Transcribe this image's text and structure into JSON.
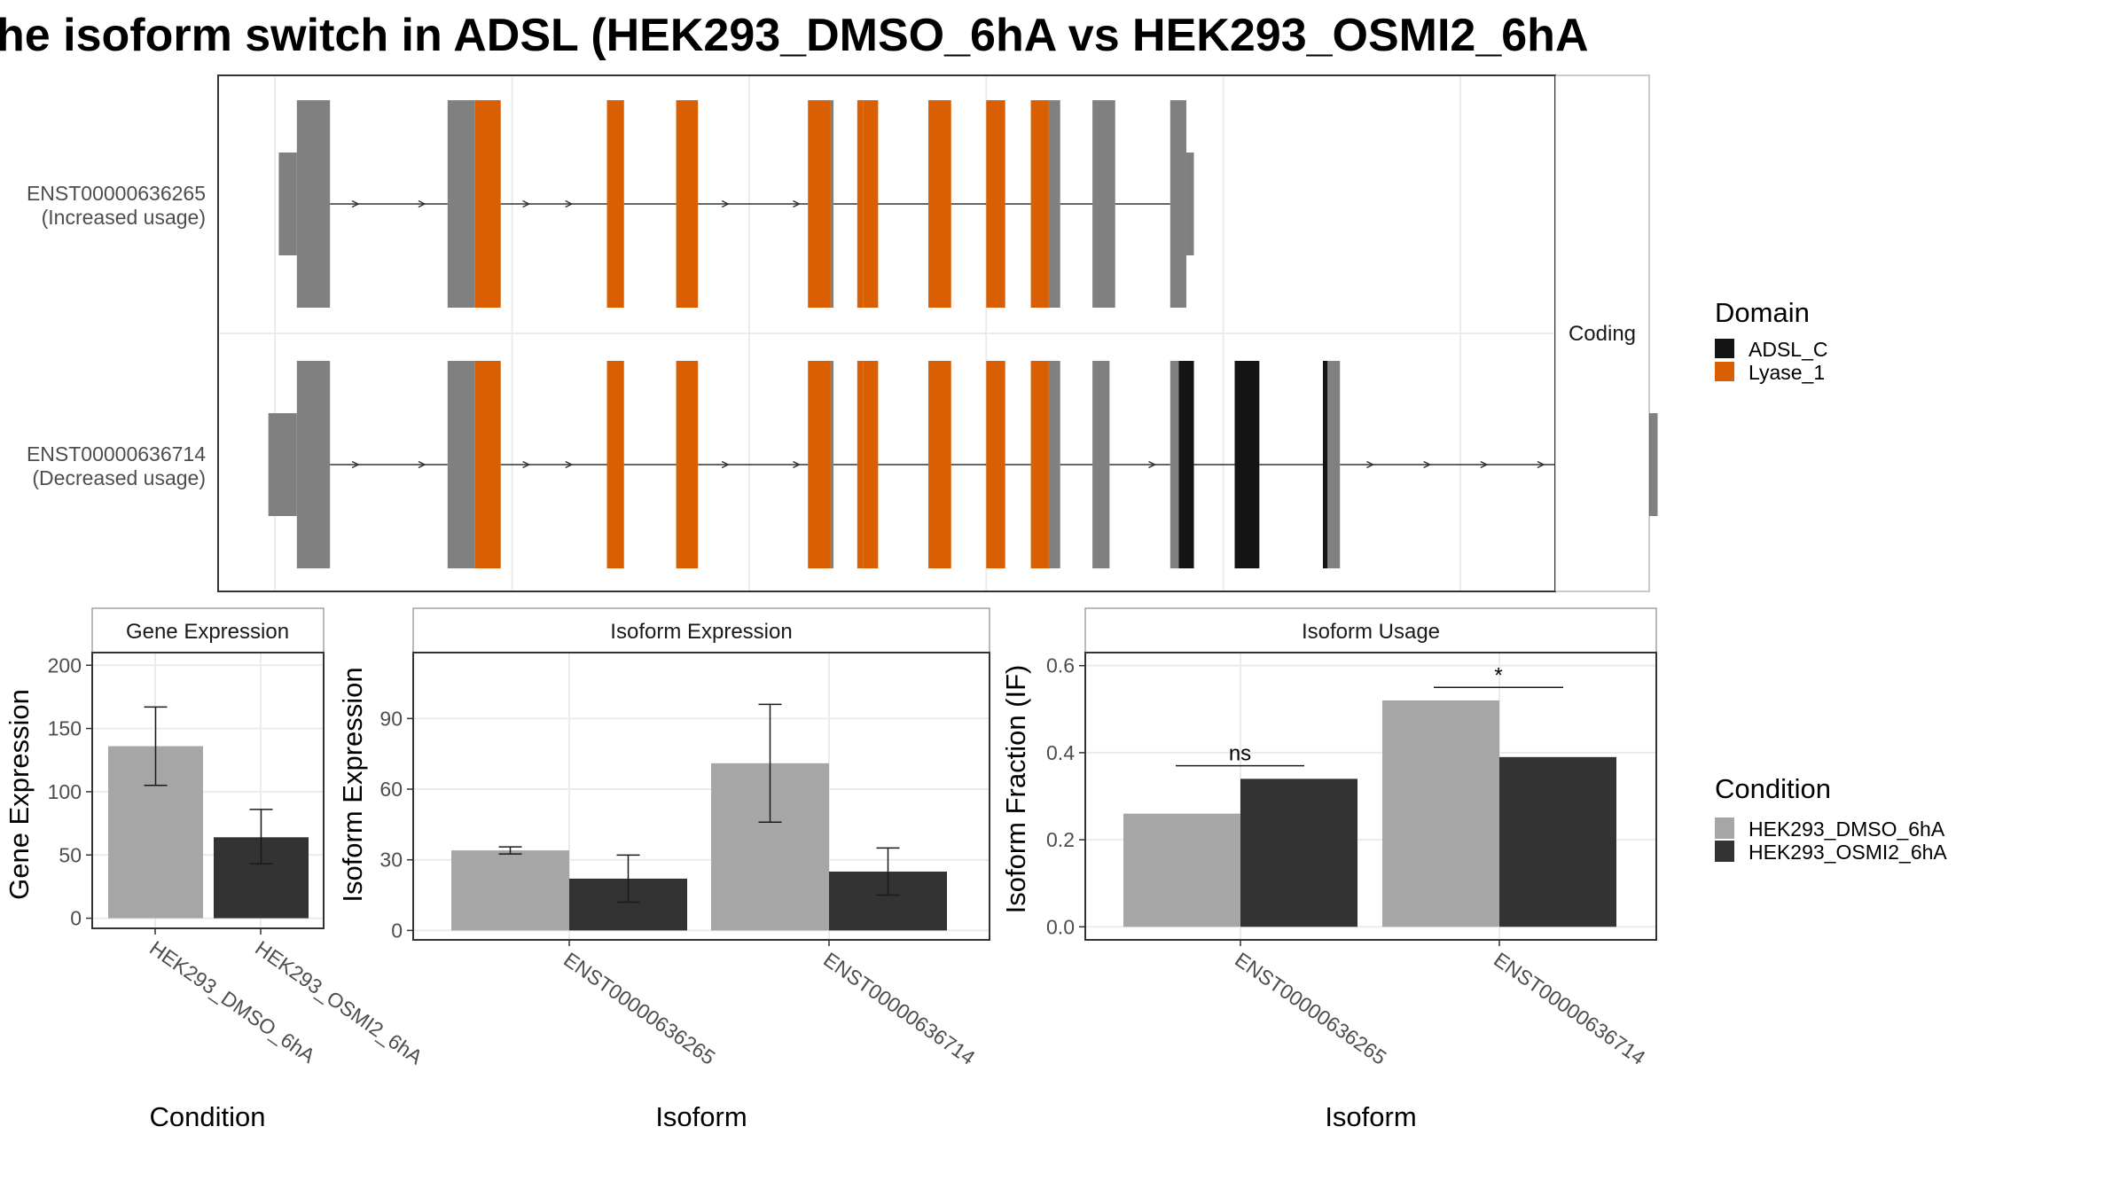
{
  "colors": {
    "dmso": "#a6a6a6",
    "osmi2": "#333333",
    "noncoding_exon": "#808080",
    "lyase_1": "#d95f02",
    "adsl_c": "#141414",
    "panel_border": "#333333",
    "grid": "#ebebeb",
    "strip_bg": "#ffffff"
  },
  "title": "he isoform switch in ADSL (HEK293_DMSO_6hA vs HEK293_OSMI2_6hA",
  "chart_data": [
    {
      "type": "gene-structure",
      "tracks": [
        {
          "id": "ENST00000636265",
          "label_line1": "ENST00000636265",
          "label_line2": "(Increased usage)"
        },
        {
          "id": "ENST00000636714",
          "label_line1": "ENST00000636714",
          "label_line2": "(Decreased usage)"
        }
      ],
      "facet_label": "Coding",
      "legend": {
        "title": "Domain",
        "items": [
          {
            "label": "ADSL_C",
            "color": "#141414"
          },
          {
            "label": "Lyase_1",
            "color": "#d95f02"
          }
        ]
      },
      "exons": {
        "ENST00000636265": [
          {
            "start": 0.4,
            "end": 2.3,
            "type": "utr"
          },
          {
            "start": 2.3,
            "end": 5.8,
            "type": "cds"
          },
          {
            "start": 18.2,
            "end": 21.1,
            "type": "cds"
          },
          {
            "start": 21.1,
            "end": 23.8,
            "type": "lyase_1"
          },
          {
            "start": 35.0,
            "end": 36.8,
            "type": "lyase_1"
          },
          {
            "start": 42.3,
            "end": 44.6,
            "type": "lyase_1"
          },
          {
            "start": 56.2,
            "end": 58.6,
            "type": "lyase_1"
          },
          {
            "start": 58.6,
            "end": 58.9,
            "type": "cds"
          },
          {
            "start": 61.4,
            "end": 62.0,
            "type": "lyase_1"
          },
          {
            "start": 62.0,
            "end": 63.6,
            "type": "lyase_1"
          },
          {
            "start": 68.9,
            "end": 71.3,
            "type": "lyase_1"
          },
          {
            "start": 75.0,
            "end": 77.0,
            "type": "lyase_1"
          },
          {
            "start": 79.7,
            "end": 81.6,
            "type": "lyase_1"
          },
          {
            "start": 81.6,
            "end": 82.8,
            "type": "cds"
          },
          {
            "start": 86.2,
            "end": 88.6,
            "type": "cds"
          },
          {
            "start": 94.4,
            "end": 96.1,
            "type": "cds"
          },
          {
            "start": 96.1,
            "end": 96.9,
            "type": "utr"
          }
        ],
        "ENST00000636714": [
          {
            "start": -0.7,
            "end": 2.3,
            "type": "utr"
          },
          {
            "start": 2.3,
            "end": 5.8,
            "type": "cds"
          },
          {
            "start": 18.2,
            "end": 21.1,
            "type": "cds"
          },
          {
            "start": 21.1,
            "end": 23.8,
            "type": "lyase_1"
          },
          {
            "start": 35.0,
            "end": 36.8,
            "type": "lyase_1"
          },
          {
            "start": 42.3,
            "end": 44.6,
            "type": "lyase_1"
          },
          {
            "start": 56.2,
            "end": 58.6,
            "type": "lyase_1"
          },
          {
            "start": 58.6,
            "end": 58.9,
            "type": "cds"
          },
          {
            "start": 61.4,
            "end": 62.0,
            "type": "lyase_1"
          },
          {
            "start": 62.0,
            "end": 63.6,
            "type": "lyase_1"
          },
          {
            "start": 68.9,
            "end": 71.3,
            "type": "lyase_1"
          },
          {
            "start": 75.0,
            "end": 77.0,
            "type": "lyase_1"
          },
          {
            "start": 79.7,
            "end": 81.6,
            "type": "lyase_1"
          },
          {
            "start": 81.6,
            "end": 82.8,
            "type": "cds"
          },
          {
            "start": 86.2,
            "end": 88.0,
            "type": "cds"
          },
          {
            "start": 94.4,
            "end": 95.3,
            "type": "cds"
          },
          {
            "start": 95.3,
            "end": 96.9,
            "type": "adsl_c"
          },
          {
            "start": 101.2,
            "end": 103.8,
            "type": "adsl_c"
          },
          {
            "start": 110.5,
            "end": 111.0,
            "type": "adsl_c"
          },
          {
            "start": 111.0,
            "end": 112.3,
            "type": "cds"
          },
          {
            "start": 141.7,
            "end": 142.4,
            "type": "cds"
          },
          {
            "start": 142.4,
            "end": 145.8,
            "type": "utr"
          }
        ]
      },
      "introns": {
        "ENST00000636265": [
          [
            5.8,
            18.2
          ],
          [
            23.8,
            35.0
          ],
          [
            36.8,
            42.3
          ],
          [
            44.6,
            56.2
          ],
          [
            58.9,
            61.4
          ],
          [
            63.6,
            68.9
          ],
          [
            71.3,
            75.0
          ],
          [
            77.0,
            79.7
          ],
          [
            82.8,
            86.2
          ],
          [
            88.6,
            94.4
          ]
        ],
        "ENST00000636714": [
          [
            5.8,
            18.2
          ],
          [
            23.8,
            35.0
          ],
          [
            36.8,
            42.3
          ],
          [
            44.6,
            56.2
          ],
          [
            58.9,
            61.4
          ],
          [
            63.6,
            68.9
          ],
          [
            71.3,
            75.0
          ],
          [
            77.0,
            79.7
          ],
          [
            82.8,
            86.2
          ],
          [
            88.0,
            94.4
          ],
          [
            96.9,
            101.2
          ],
          [
            103.8,
            110.5
          ],
          [
            112.3,
            141.7
          ]
        ]
      },
      "arrows": {
        "ENST00000636265": [
          8.5,
          15.5,
          26.5,
          31.0,
          47.5,
          55.0
        ],
        "ENST00000636714": [
          8.5,
          15.5,
          26.5,
          31.0,
          47.5,
          55.0,
          92.5,
          115.5,
          121.5,
          127.5,
          133.5
        ]
      },
      "xlim": [
        -6,
        135
      ]
    },
    {
      "type": "bar",
      "facet_label": "Gene Expression",
      "categories": [
        "HEK293_DMSO_6hA",
        "HEK293_OSMI2_6hA"
      ],
      "values": [
        136,
        64
      ],
      "errors": [
        [
          105,
          167
        ],
        [
          43,
          86
        ]
      ],
      "ylabel": "Gene Expression",
      "xlabel": "Condition",
      "ylim": [
        -8,
        210
      ],
      "yticks": [
        0,
        50,
        100,
        150,
        200
      ]
    },
    {
      "type": "bar",
      "facet_label": "Isoform Expression",
      "categories": [
        "ENST00000636265",
        "ENST00000636714"
      ],
      "series": [
        {
          "name": "HEK293_DMSO_6hA",
          "values": [
            34,
            71
          ],
          "errors": [
            [
              32.5,
              35.5
            ],
            [
              46,
              96
            ]
          ]
        },
        {
          "name": "HEK293_OSMI2_6hA",
          "values": [
            22,
            25
          ],
          "errors": [
            [
              12,
              32
            ],
            [
              15,
              35
            ]
          ]
        }
      ],
      "ylabel": "Isoform Expression",
      "xlabel": "Isoform",
      "ylim": [
        -4,
        118
      ],
      "yticks": [
        0,
        30,
        60,
        90
      ]
    },
    {
      "type": "bar",
      "facet_label": "Isoform Usage",
      "categories": [
        "ENST00000636265",
        "ENST00000636714"
      ],
      "series": [
        {
          "name": "HEK293_DMSO_6hA",
          "values": [
            0.26,
            0.52
          ]
        },
        {
          "name": "HEK293_OSMI2_6hA",
          "values": [
            0.34,
            0.39
          ]
        }
      ],
      "significance": [
        {
          "category": "ENST00000636265",
          "label": "ns",
          "y": 0.37
        },
        {
          "category": "ENST00000636714",
          "label": "*",
          "y": 0.55
        }
      ],
      "ylabel": "Isoform Fraction (IF)",
      "xlabel": "Isoform",
      "ylim": [
        -0.03,
        0.63
      ],
      "yticks": [
        0.0,
        0.2,
        0.4,
        0.6
      ],
      "ytick_labels": [
        "0.0",
        "0.2",
        "0.4",
        "0.6"
      ]
    }
  ],
  "condition_legend": {
    "title": "Condition",
    "items": [
      {
        "label": "HEK293_DMSO_6hA",
        "color": "#a6a6a6"
      },
      {
        "label": "HEK293_OSMI2_6hA",
        "color": "#333333"
      }
    ]
  }
}
